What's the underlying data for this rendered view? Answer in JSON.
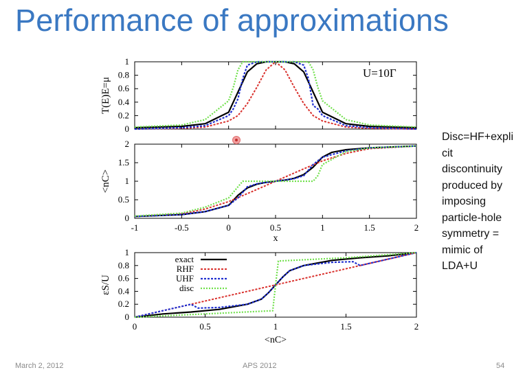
{
  "slide": {
    "title": "Performance of approximations",
    "side_note_lines": [
      "Disc=HF+expli",
      "cit",
      "discontinuity",
      "produced by",
      "imposing",
      "particle-hole",
      "symmetry =",
      "mimic of",
      "LDA+U"
    ],
    "footer_date": "March 2, 2012",
    "footer_event": "APS 2012",
    "footer_page": "54"
  },
  "colors": {
    "title": "#3a78c2",
    "exact": "#000000",
    "RHF": "#d9302c",
    "UHF": "#1f2fd0",
    "disc": "#6fe04a",
    "purple_overlap": "#7a3aa8"
  },
  "chart_data": [
    {
      "type": "line",
      "panel": "top",
      "ylabel": "T(E)E=μ",
      "xlim": [
        -1,
        2
      ],
      "ylim": [
        0,
        1
      ],
      "yticks": [
        "0",
        "0.2",
        "0.4",
        "0.6",
        "0.8",
        "1"
      ],
      "annotation": "U=10Γ",
      "series": [
        {
          "name": "exact",
          "x": [
            -1,
            -0.5,
            -0.25,
            0,
            0.1,
            0.2,
            0.3,
            0.4,
            0.5,
            0.6,
            0.7,
            0.8,
            0.9,
            1.0,
            1.25,
            1.5,
            2
          ],
          "y": [
            0.02,
            0.04,
            0.08,
            0.25,
            0.55,
            0.85,
            0.97,
            1.0,
            1.0,
            1.0,
            0.97,
            0.85,
            0.55,
            0.25,
            0.08,
            0.04,
            0.02
          ]
        },
        {
          "name": "RHF",
          "x": [
            -1,
            -0.5,
            -0.25,
            0,
            0.1,
            0.2,
            0.3,
            0.4,
            0.5,
            0.6,
            0.7,
            0.8,
            0.9,
            1.0,
            1.25,
            1.5,
            2
          ],
          "y": [
            0.0,
            0.01,
            0.03,
            0.12,
            0.2,
            0.38,
            0.62,
            0.88,
            1.0,
            0.88,
            0.62,
            0.38,
            0.2,
            0.12,
            0.03,
            0.01,
            0.0
          ]
        },
        {
          "name": "UHF",
          "x": [
            -1,
            -0.5,
            -0.25,
            0,
            0.05,
            0.1,
            0.15,
            0.2,
            0.3,
            0.5,
            0.7,
            0.8,
            0.85,
            0.9,
            0.95,
            1.0,
            1.25,
            1.5,
            2
          ],
          "y": [
            0.0,
            0.02,
            0.05,
            0.2,
            0.3,
            0.45,
            0.75,
            0.95,
            1.0,
            1.0,
            1.0,
            0.95,
            0.75,
            0.35,
            0.3,
            0.2,
            0.05,
            0.02,
            0.0
          ]
        },
        {
          "name": "disc",
          "x": [
            -1,
            -0.5,
            -0.25,
            0,
            0.05,
            0.1,
            0.15,
            0.2,
            0.5,
            0.8,
            0.85,
            0.9,
            0.95,
            1.0,
            1.25,
            1.5,
            2
          ],
          "y": [
            0.03,
            0.06,
            0.14,
            0.42,
            0.62,
            0.88,
            1.0,
            1.0,
            1.0,
            1.0,
            1.0,
            0.88,
            0.62,
            0.42,
            0.14,
            0.06,
            0.03
          ]
        }
      ]
    },
    {
      "type": "line",
      "panel": "middle",
      "ylabel": "<nC>",
      "xlabel": "x",
      "xlim": [
        -1,
        2
      ],
      "ylim": [
        0,
        2
      ],
      "xticks": [
        "-1",
        "-0.5",
        "0",
        "0.5",
        "1",
        "1.5",
        "2"
      ],
      "yticks": [
        "0",
        "0.5",
        "1",
        "1.5",
        "2"
      ],
      "series": [
        {
          "name": "exact",
          "x": [
            -1,
            -0.5,
            -0.25,
            0,
            0.1,
            0.2,
            0.3,
            0.4,
            0.5,
            0.6,
            0.7,
            0.8,
            0.9,
            1.0,
            1.1,
            1.25,
            1.5,
            2
          ],
          "y": [
            0.05,
            0.1,
            0.18,
            0.35,
            0.62,
            0.82,
            0.92,
            0.97,
            1.0,
            1.03,
            1.08,
            1.18,
            1.38,
            1.65,
            1.78,
            1.85,
            1.9,
            1.95
          ]
        },
        {
          "name": "RHF",
          "x": [
            -1,
            -0.5,
            -0.25,
            0,
            0.25,
            0.5,
            0.75,
            1.0,
            1.25,
            1.5,
            2
          ],
          "y": [
            0.05,
            0.12,
            0.25,
            0.45,
            0.72,
            1.0,
            1.28,
            1.55,
            1.75,
            1.88,
            1.95
          ]
        },
        {
          "name": "UHF",
          "x": [
            -1,
            -0.5,
            -0.25,
            0,
            0.1,
            0.2,
            0.3,
            0.4,
            0.5,
            0.6,
            0.7,
            0.8,
            0.9,
            1.0,
            1.25,
            1.5,
            2
          ],
          "y": [
            0.05,
            0.1,
            0.18,
            0.35,
            0.55,
            0.85,
            0.93,
            0.97,
            1.0,
            1.03,
            1.07,
            1.15,
            1.45,
            1.65,
            1.82,
            1.9,
            1.95
          ]
        },
        {
          "name": "disc",
          "x": [
            -1,
            -0.5,
            -0.25,
            0,
            0.1,
            0.15,
            0.2,
            0.5,
            0.8,
            0.9,
            0.95,
            1.0,
            1.25,
            1.5,
            2
          ],
          "y": [
            0.06,
            0.14,
            0.3,
            0.55,
            0.85,
            1.0,
            1.0,
            1.0,
            1.0,
            1.0,
            1.15,
            1.45,
            1.8,
            1.9,
            1.95
          ]
        }
      ]
    },
    {
      "type": "line",
      "panel": "bottom",
      "ylabel": "εS/U",
      "xlabel": "<nC>",
      "xlim": [
        0,
        2
      ],
      "ylim": [
        0,
        1
      ],
      "xticks": [
        "0",
        "0.5",
        "1",
        "1.5",
        "2"
      ],
      "yticks": [
        "0",
        "0.2",
        "0.4",
        "0.6",
        "0.8",
        "1"
      ],
      "legend": [
        "exact",
        "RHF",
        "UHF",
        "disc"
      ],
      "legend_position": "top-left",
      "series": [
        {
          "name": "exact",
          "x": [
            0,
            0.2,
            0.4,
            0.6,
            0.8,
            0.9,
            0.95,
            1.0,
            1.05,
            1.1,
            1.2,
            1.4,
            1.6,
            1.8,
            2
          ],
          "y": [
            0,
            0.05,
            0.08,
            0.12,
            0.2,
            0.28,
            0.38,
            0.5,
            0.62,
            0.72,
            0.8,
            0.88,
            0.92,
            0.95,
            1.0
          ]
        },
        {
          "name": "RHF",
          "x": [
            0,
            0.5,
            1.0,
            1.5,
            2
          ],
          "y": [
            0,
            0.25,
            0.5,
            0.75,
            1.0
          ]
        },
        {
          "name": "UHF",
          "x": [
            0,
            0.2,
            0.4,
            0.45,
            0.6,
            0.8,
            0.9,
            0.95,
            1.0,
            1.05,
            1.1,
            1.2,
            1.4,
            1.55,
            1.6,
            1.8,
            2
          ],
          "y": [
            0,
            0.1,
            0.2,
            0.14,
            0.15,
            0.2,
            0.28,
            0.38,
            0.5,
            0.62,
            0.72,
            0.8,
            0.85,
            0.86,
            0.8,
            0.9,
            1.0
          ]
        },
        {
          "name": "disc",
          "x": [
            0,
            0.5,
            0.98,
            1.0,
            1.02,
            1.5,
            2
          ],
          "y": [
            0.0,
            0.05,
            0.1,
            0.5,
            0.87,
            0.92,
            1.0
          ]
        }
      ]
    }
  ]
}
